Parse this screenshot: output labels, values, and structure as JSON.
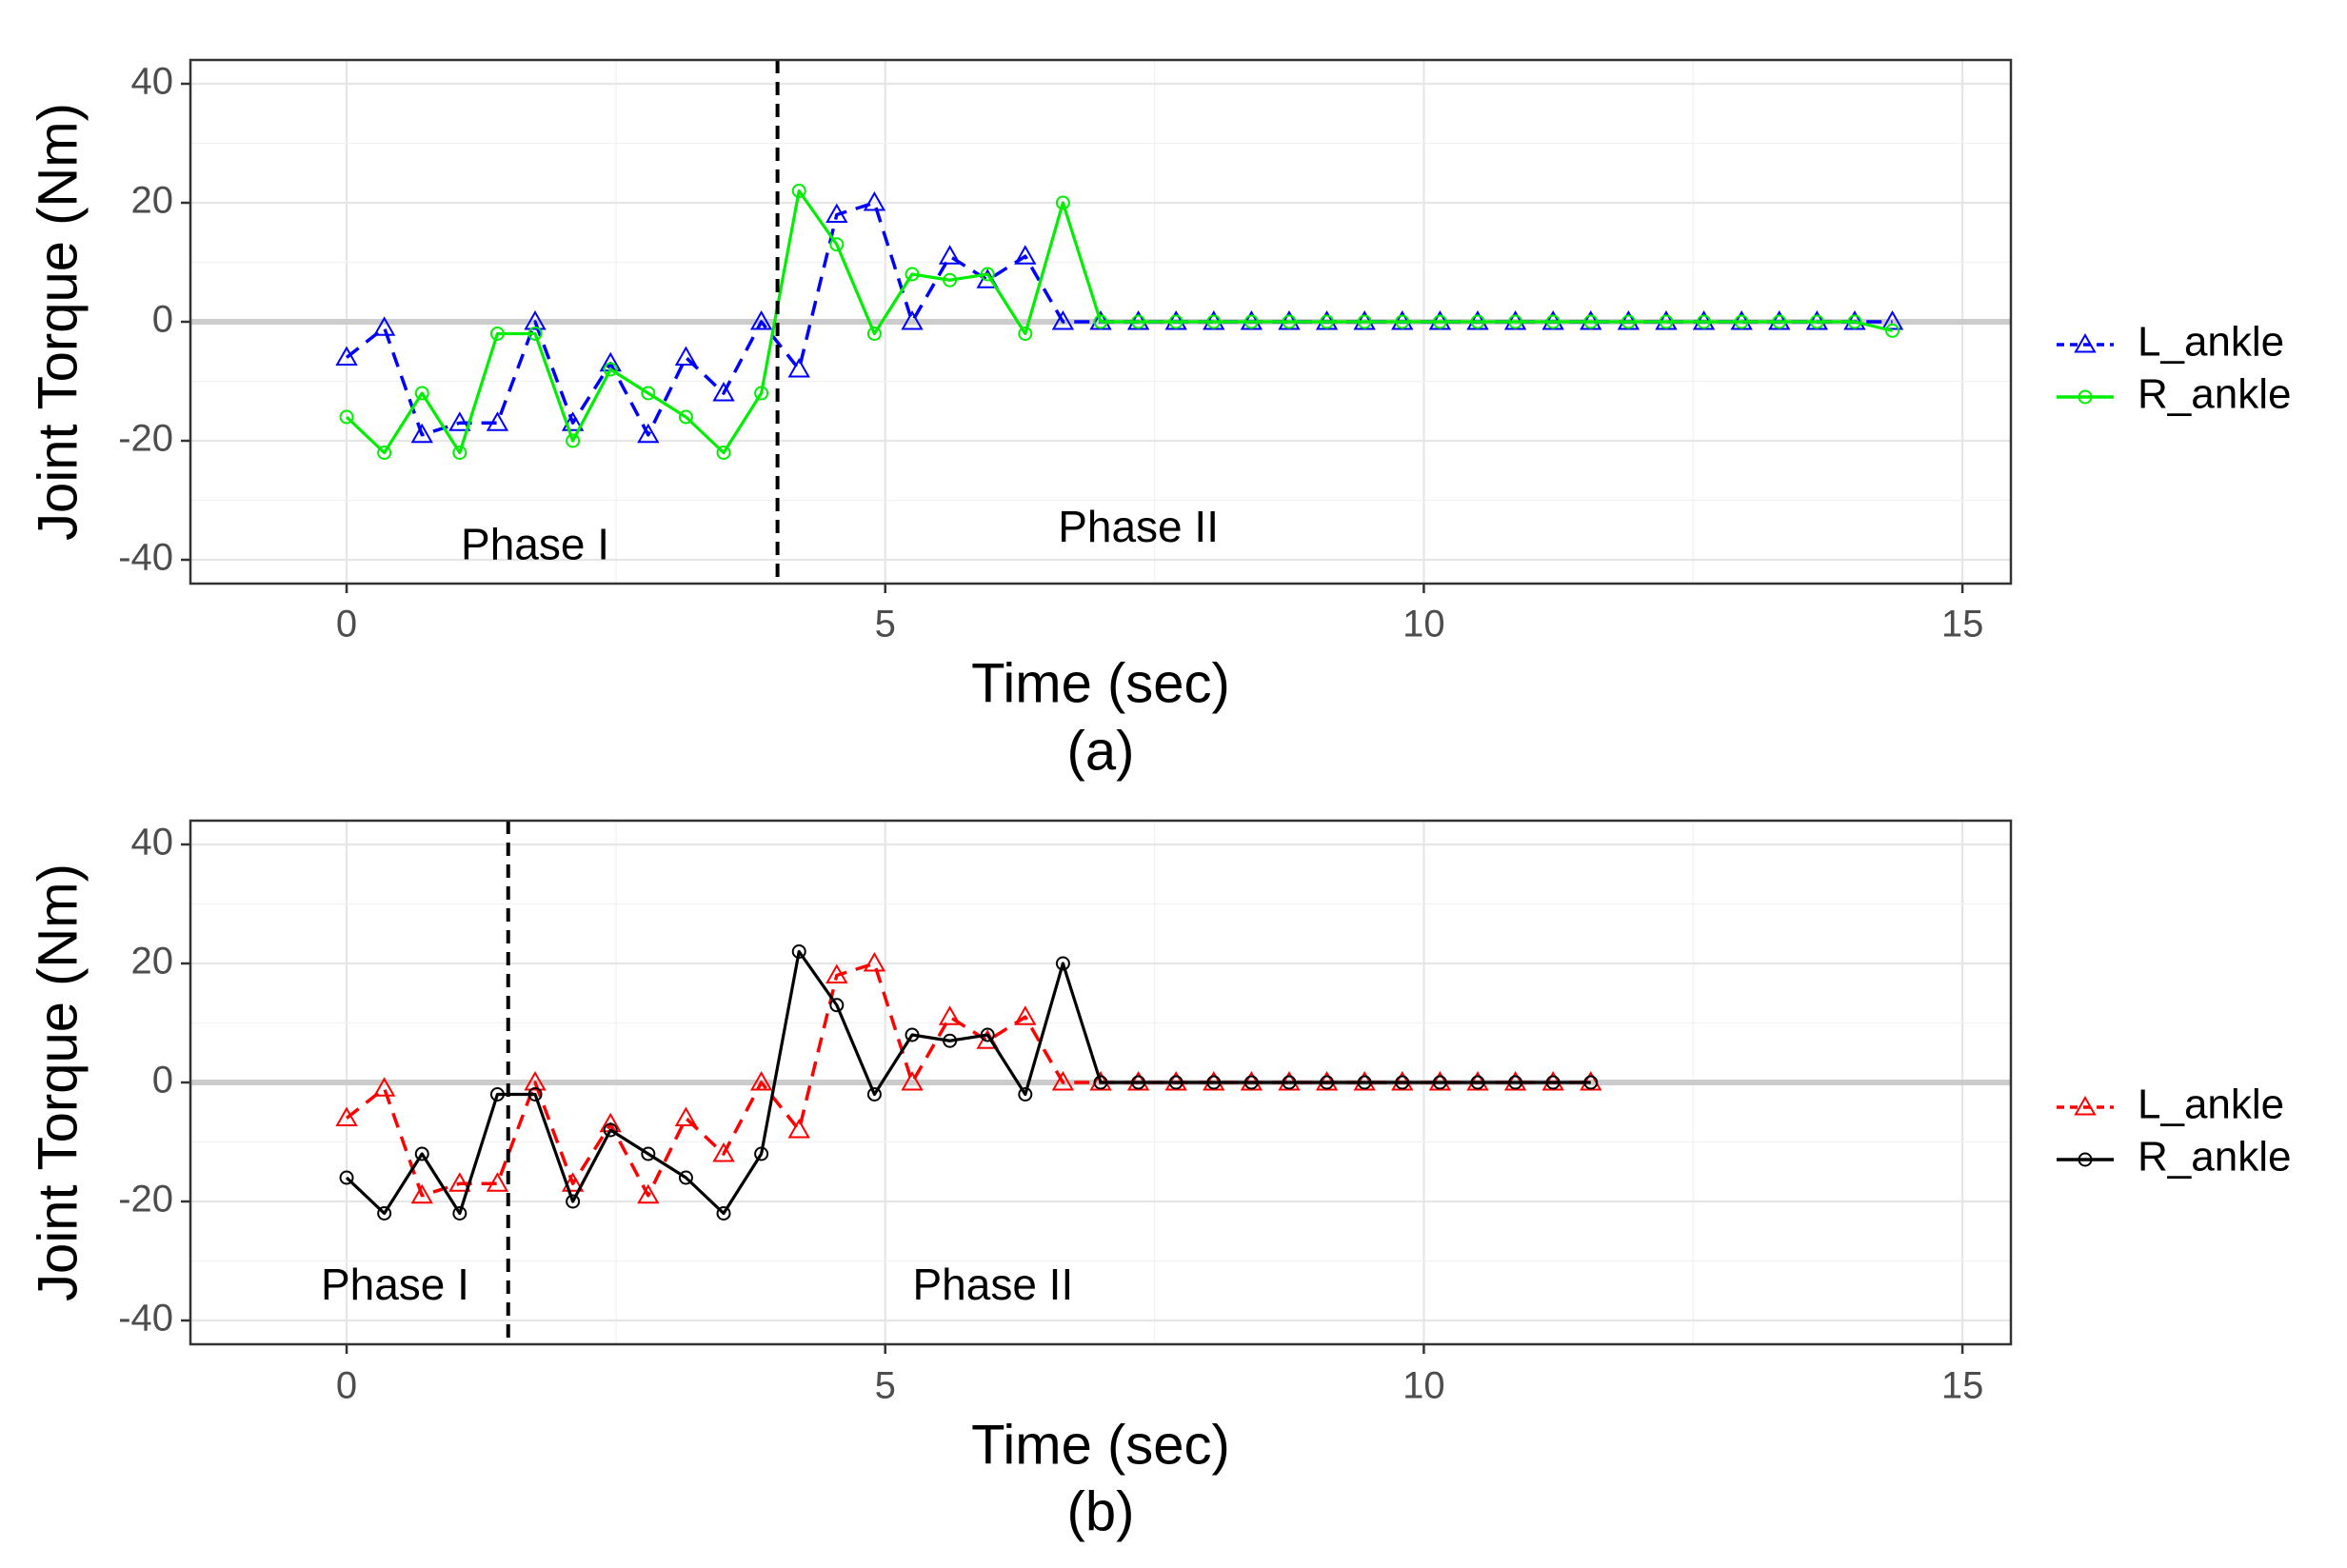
{
  "chart_data": [
    {
      "type": "line",
      "caption": "(a)",
      "xlabel": "Time (sec)",
      "ylabel": "Joint Torque (Nm)",
      "xlim": [
        -1.45,
        15.45
      ],
      "ylim": [
        -44,
        44
      ],
      "xticks": [
        0,
        5,
        10,
        15
      ],
      "yticks": [
        -40,
        -20,
        0,
        20,
        40
      ],
      "grid": true,
      "zero_line": 0,
      "phase_divider_x": 4.0,
      "annotations": [
        {
          "text": "Phase I",
          "x": 1.75,
          "y": -38
        },
        {
          "text": "Phase II",
          "x": 7.35,
          "y": -35
        }
      ],
      "legend": {
        "position": "right",
        "entries": [
          "L_ankle",
          "R_ankle"
        ]
      },
      "series": [
        {
          "name": "L_ankle",
          "color": "#0000ff",
          "dash": "dashed",
          "marker": "triangle",
          "x": [
            0,
            0.35,
            0.7,
            1.05,
            1.4,
            1.75,
            2.1,
            2.45,
            2.8,
            3.15,
            3.5,
            3.85,
            4.2,
            4.55,
            4.9,
            5.25,
            5.6,
            5.95,
            6.3,
            6.65,
            7.0,
            7.35,
            7.7,
            8.05,
            8.4,
            8.75,
            9.1,
            9.45,
            9.8,
            10.15,
            10.5,
            10.85,
            11.2,
            11.55,
            11.9,
            12.25,
            12.6,
            12.95,
            13.3,
            13.65,
            14.0,
            14.35
          ],
          "y": [
            -6,
            -1,
            -19,
            -17,
            -17,
            0,
            -17,
            -7,
            -19,
            -6,
            -12,
            0,
            -8,
            18,
            20,
            0,
            11,
            7,
            11,
            0,
            0,
            0,
            0,
            0,
            0,
            0,
            0,
            0,
            0,
            0,
            0,
            0,
            0,
            0,
            0,
            0,
            0,
            0,
            0,
            0,
            0,
            0
          ]
        },
        {
          "name": "R_ankle",
          "color": "#00ee00",
          "dash": "solid",
          "marker": "circle",
          "x": [
            0,
            0.35,
            0.7,
            1.05,
            1.4,
            1.75,
            2.1,
            2.45,
            2.8,
            3.15,
            3.5,
            3.85,
            4.2,
            4.55,
            4.9,
            5.25,
            5.6,
            5.95,
            6.3,
            6.65,
            7.0,
            7.35,
            7.7,
            8.05,
            8.4,
            8.75,
            9.1,
            9.45,
            9.8,
            10.15,
            10.5,
            10.85,
            11.2,
            11.55,
            11.9,
            12.25,
            12.6,
            12.95,
            13.3,
            13.65,
            14.0,
            14.35
          ],
          "y": [
            -16,
            -22,
            -12,
            -22,
            -2,
            -2,
            -20,
            -8,
            -12,
            -16,
            -22,
            -12,
            22,
            13,
            -2,
            8,
            7,
            8,
            -2,
            20,
            0,
            0,
            0,
            0,
            0,
            0,
            0,
            0,
            0,
            0,
            0,
            0,
            0,
            0,
            0,
            0,
            0,
            0,
            0,
            0,
            0,
            -1.5
          ]
        }
      ]
    },
    {
      "type": "line",
      "caption": "(b)",
      "xlabel": "Time (sec)",
      "ylabel": "Joint Torque (Nm)",
      "xlim": [
        -1.45,
        15.45
      ],
      "ylim": [
        -44,
        44
      ],
      "xticks": [
        0,
        5,
        10,
        15
      ],
      "yticks": [
        -40,
        -20,
        0,
        20,
        40
      ],
      "grid": true,
      "zero_line": 0,
      "phase_divider_x": 1.5,
      "annotations": [
        {
          "text": "Phase I",
          "x": 0.45,
          "y": -34.5
        },
        {
          "text": "Phase II",
          "x": 6.0,
          "y": -34.5
        }
      ],
      "legend": {
        "position": "right",
        "entries": [
          "L_ankle",
          "R_ankle"
        ]
      },
      "series": [
        {
          "name": "L_ankle",
          "color": "#ff0000",
          "dash": "dashed",
          "marker": "triangle",
          "x": [
            0,
            0.35,
            0.7,
            1.05,
            1.4,
            1.75,
            2.1,
            2.45,
            2.8,
            3.15,
            3.5,
            3.85,
            4.2,
            4.55,
            4.9,
            5.25,
            5.6,
            5.95,
            6.3,
            6.65,
            7.0,
            7.35,
            7.7,
            8.05,
            8.4,
            8.75,
            9.1,
            9.45,
            9.8,
            10.15,
            10.5,
            10.85,
            11.2,
            11.55
          ],
          "y": [
            -6,
            -1,
            -19,
            -17,
            -17,
            0,
            -17,
            -7,
            -19,
            -6,
            -12,
            0,
            -8,
            18,
            20,
            0,
            11,
            7,
            11,
            0,
            0,
            0,
            0,
            0,
            0,
            0,
            0,
            0,
            0,
            0,
            0,
            0,
            0,
            0
          ]
        },
        {
          "name": "R_ankle",
          "color": "#000000",
          "dash": "solid",
          "marker": "circle",
          "x": [
            0,
            0.35,
            0.7,
            1.05,
            1.4,
            1.75,
            2.1,
            2.45,
            2.8,
            3.15,
            3.5,
            3.85,
            4.2,
            4.55,
            4.9,
            5.25,
            5.6,
            5.95,
            6.3,
            6.65,
            7.0,
            7.35,
            7.7,
            8.05,
            8.4,
            8.75,
            9.1,
            9.45,
            9.8,
            10.15,
            10.5,
            10.85,
            11.2,
            11.55
          ],
          "y": [
            -16,
            -22,
            -12,
            -22,
            -2,
            -2,
            -20,
            -8,
            -12,
            -16,
            -22,
            -12,
            22,
            13,
            -2,
            8,
            7,
            8,
            -2,
            20,
            0,
            0,
            0,
            0,
            0,
            0,
            0,
            0,
            0,
            0,
            0,
            0,
            0,
            0
          ]
        }
      ]
    }
  ]
}
